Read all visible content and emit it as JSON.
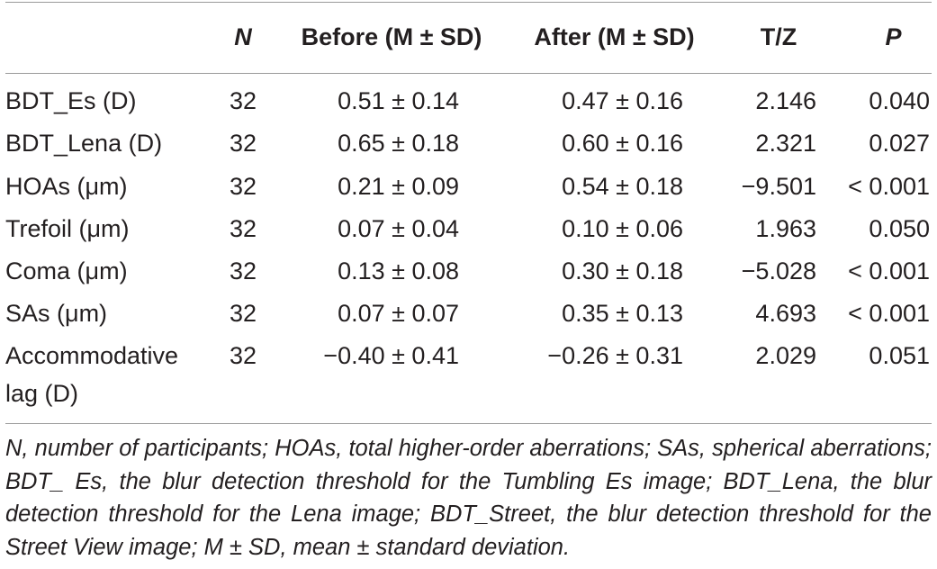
{
  "table": {
    "headers": {
      "n": "N",
      "before": "Before (M ± SD)",
      "after": "After (M ± SD)",
      "tz": "T/Z",
      "p": "P"
    },
    "rows": [
      {
        "label": "BDT_Es (D)",
        "n": "32",
        "before": "0.51 ± 0.14",
        "after": "0.47 ± 0.16",
        "tz": "2.146",
        "p": "0.040"
      },
      {
        "label": "BDT_Lena (D)",
        "n": "32",
        "before": "0.65 ± 0.18",
        "after": "0.60 ± 0.16",
        "tz": "2.321",
        "p": "0.027"
      },
      {
        "label": "HOAs (μm)",
        "n": "32",
        "before": "0.21 ± 0.09",
        "after": "0.54 ± 0.18",
        "tz": "−9.501",
        "p": "< 0.001"
      },
      {
        "label": "Trefoil (μm)",
        "n": "32",
        "before": "0.07 ± 0.04",
        "after": "0.10 ± 0.06",
        "tz": "1.963",
        "p": "0.050"
      },
      {
        "label": "Coma (μm)",
        "n": "32",
        "before": "0.13 ± 0.08",
        "after": "0.30 ± 0.18",
        "tz": "−5.028",
        "p": "< 0.001"
      },
      {
        "label": "SAs (μm)",
        "n": "32",
        "before": "0.07 ± 0.07",
        "after": "0.35 ± 0.13",
        "tz": "4.693",
        "p": "< 0.001"
      },
      {
        "label_line1": "Accommodative",
        "label_line2": "lag (D)",
        "n": "32",
        "before": "−0.40 ± 0.41",
        "after": "−0.26 ± 0.31",
        "tz": "2.029",
        "p": "0.051"
      }
    ],
    "footnote": "N, number of participants; HOAs, total higher-order aberrations; SAs, spherical aberrations; BDT_ Es, the blur detection threshold for the Tumbling Es image; BDT_Lena, the blur detection threshold for the Lena image; BDT_Street, the blur detection threshold for the Street View image; M ± SD, mean ± standard deviation."
  }
}
